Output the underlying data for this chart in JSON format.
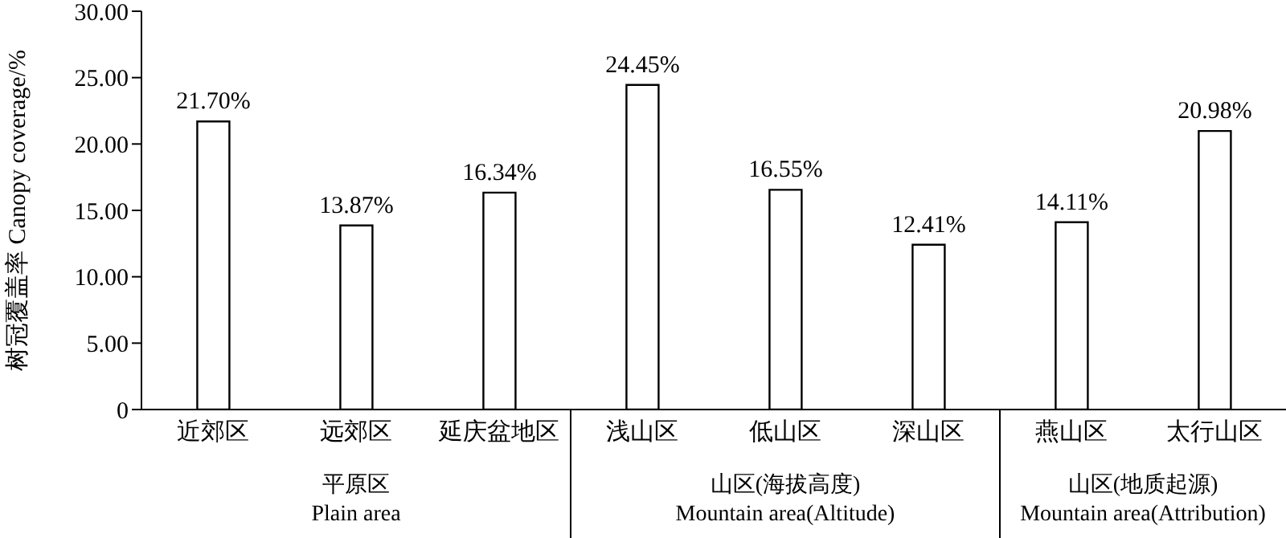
{
  "chart_data": {
    "type": "bar",
    "ylabel": "树冠覆盖率 Canopy coverage/%",
    "categories": [
      "近郊区",
      "远郊区",
      "延庆盆地区",
      "浅山区",
      "低山区",
      "深山区",
      "燕山区",
      "太行山区"
    ],
    "values": [
      21.7,
      13.87,
      16.34,
      24.45,
      16.55,
      12.41,
      14.11,
      20.98
    ],
    "value_labels": [
      "21.70%",
      "13.87%",
      "16.34%",
      "24.45%",
      "16.55%",
      "12.41%",
      "14.11%",
      "20.98%"
    ],
    "color": "#ffffff",
    "ylim": [
      0,
      30
    ],
    "yticks": [
      {
        "value": 0,
        "label": "0"
      },
      {
        "value": 5,
        "label": "5.00"
      },
      {
        "value": 10,
        "label": "10.00"
      },
      {
        "value": 15,
        "label": "15.00"
      },
      {
        "value": 20,
        "label": "20.00"
      },
      {
        "value": 25,
        "label": "25.00"
      },
      {
        "value": 30,
        "label": "30.00"
      }
    ],
    "grid": false,
    "annotations": [
      "平原区\nPlain area",
      "山区(海拔高度)\nMountain area(Altitude)",
      "山区(地质起源)\nMountain area(Attribution)"
    ]
  }
}
